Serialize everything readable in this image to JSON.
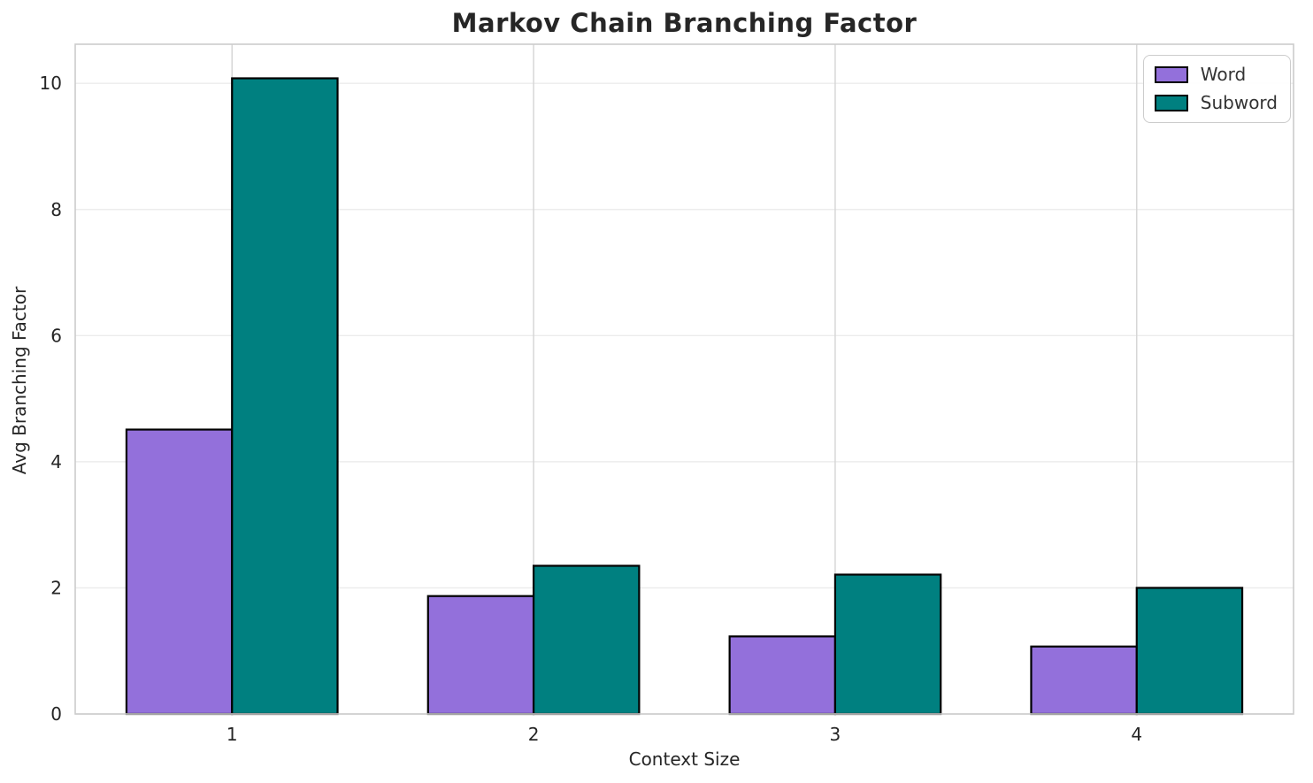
{
  "chart_data": {
    "type": "bar",
    "title": "Markov Chain Branching Factor",
    "xlabel": "Context Size",
    "ylabel": "Avg Branching Factor",
    "categories": [
      "1",
      "2",
      "3",
      "4"
    ],
    "series": [
      {
        "name": "Word",
        "color": "#9370DB",
        "values": [
          4.51,
          1.87,
          1.23,
          1.07
        ]
      },
      {
        "name": "Subword",
        "color": "#008080",
        "values": [
          10.08,
          2.35,
          2.21,
          2.0
        ]
      }
    ],
    "yticks": [
      0,
      2,
      4,
      6,
      8,
      10
    ],
    "xlim": [
      0.48,
      4.52
    ],
    "ylim": [
      0,
      10.62
    ],
    "bar_width": 0.35,
    "grid": true,
    "legend_position": "upper right",
    "style": {
      "bar_edge_color": "#000000",
      "grid_color_horizontal": "#ececec",
      "grid_color_vertical": "#d4d4d4",
      "spine_color": "#cccccc",
      "text_color": "#262626",
      "background": "#ffffff"
    }
  }
}
